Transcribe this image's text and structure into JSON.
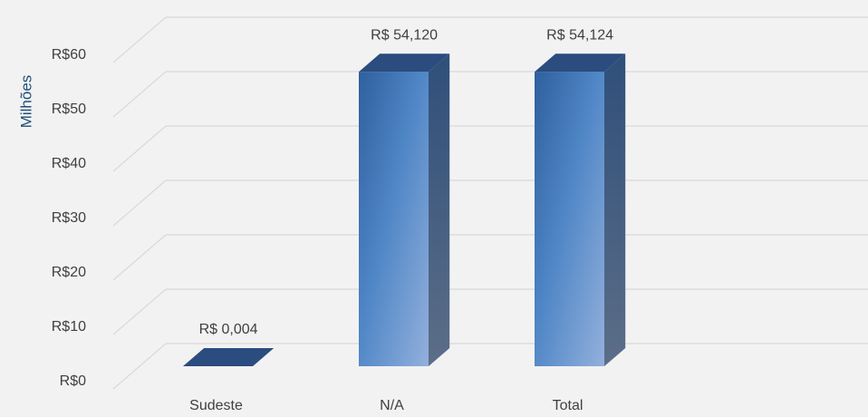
{
  "chart_data": {
    "type": "bar3d",
    "y_axis_label": "Milhões",
    "categories": [
      "Sudeste",
      "N/A",
      "Total"
    ],
    "values": [
      0.004,
      54.12,
      54.124
    ],
    "value_labels": [
      "R$ 0,004",
      "R$ 54,120",
      "R$ 54,124"
    ],
    "color": "#4f86c6",
    "ylim": [
      0,
      60
    ],
    "yticks": [
      {
        "value": 0,
        "label": "R$0"
      },
      {
        "value": 10,
        "label": "R$10"
      },
      {
        "value": 20,
        "label": "R$20"
      },
      {
        "value": 30,
        "label": "R$30"
      },
      {
        "value": 40,
        "label": "R$40"
      },
      {
        "value": 50,
        "label": "R$50"
      },
      {
        "value": 60,
        "label": "R$60"
      }
    ],
    "grid": true
  }
}
